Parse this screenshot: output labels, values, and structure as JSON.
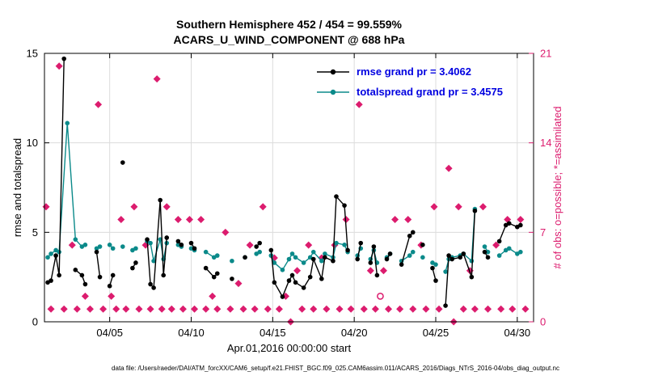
{
  "colors": {
    "rmse_line": "#000000",
    "totalspread_line": "#0b8a8a",
    "obs_markers": "#dc1c6e",
    "legend_text": "#0000e0",
    "grid": "#dcdcdc",
    "frame": "#000000",
    "background": "#ffffff"
  },
  "chart_data": {
    "type": "line",
    "title_line1": "Southern Hemisphere 452 / 454 = 99.559%",
    "title_line2": "ACARS_U_WIND_COMPONENT @ 688 hPa",
    "xlabel": "Apr.01,2016 00:00:00 start",
    "ylabel_left": "rmse and totalspread",
    "ylabel_right": "# of obs: o=possible; *=assimilated",
    "caption": "data file: /Users/raeder/DAI/ATM_forcXX/CAM6_setup/f.e21.FHIST_BGC.f09_025.CAM6assim.011/ACARS_2016/Diags_NTrS_2016-04/obs_diag_output.nc",
    "grid": true,
    "legend_position": "top-center-inside",
    "x_axis": {
      "start_label": "Apr.01,2016 00:00:00",
      "min_day": 0,
      "max_day": 30,
      "tick_days": [
        4,
        9,
        14,
        19,
        24,
        29
      ],
      "tick_labels": [
        "04/05",
        "04/10",
        "04/15",
        "04/20",
        "04/25",
        "04/30"
      ]
    },
    "y_axis_left": {
      "min": 0,
      "max": 15,
      "ticks": [
        0,
        5,
        10,
        15
      ]
    },
    "y_axis_right": {
      "min": 0,
      "max": 21,
      "ticks": [
        0,
        7,
        14,
        21
      ]
    },
    "legend": {
      "entries": [
        {
          "label": "rmse grand pr = 3.4062",
          "color": "#000000"
        },
        {
          "label": "totalspread grand pr = 3.4575",
          "color": "#0b8a8a"
        }
      ]
    },
    "series": [
      {
        "name": "rmse",
        "style": "line-dot",
        "axis": "left",
        "color": "#000000",
        "points": [
          [
            0.2,
            2.2
          ],
          [
            0.4,
            2.3
          ],
          [
            0.7,
            3.7
          ],
          [
            0.9,
            2.6
          ],
          [
            1.2,
            14.7
          ],
          [
            1.9,
            2.9
          ],
          [
            2.3,
            2.6
          ],
          [
            2.5,
            2.1
          ],
          [
            3.2,
            3.9
          ],
          [
            3.4,
            2.5
          ],
          [
            4.0,
            2.0
          ],
          [
            4.2,
            2.6
          ],
          [
            4.8,
            8.9
          ],
          [
            5.4,
            3.0
          ],
          [
            5.6,
            3.3
          ],
          [
            6.3,
            4.6
          ],
          [
            6.5,
            2.1
          ],
          [
            6.7,
            1.9
          ],
          [
            7.1,
            6.8
          ],
          [
            7.3,
            2.6
          ],
          [
            7.5,
            4.7
          ],
          [
            8.2,
            4.5
          ],
          [
            8.4,
            4.3
          ],
          [
            9.0,
            4.4
          ],
          [
            9.2,
            4.1
          ],
          [
            9.9,
            3.0
          ],
          [
            10.4,
            2.5
          ],
          [
            10.6,
            2.7
          ],
          [
            11.5,
            2.4
          ],
          [
            12.3,
            3.6
          ],
          [
            13.0,
            4.2
          ],
          [
            13.2,
            4.4
          ],
          [
            13.9,
            4.0
          ],
          [
            14.1,
            2.2
          ],
          [
            14.6,
            1.4
          ],
          [
            15.0,
            2.3
          ],
          [
            15.2,
            2.6
          ],
          [
            15.4,
            2.2
          ],
          [
            15.9,
            1.9
          ],
          [
            16.3,
            2.5
          ],
          [
            16.5,
            3.5
          ],
          [
            17.0,
            2.4
          ],
          [
            17.2,
            3.6
          ],
          [
            17.7,
            3.4
          ],
          [
            17.9,
            7.0
          ],
          [
            18.4,
            6.5
          ],
          [
            18.6,
            4.0
          ],
          [
            19.2,
            3.5
          ],
          [
            19.4,
            4.4
          ],
          [
            20.0,
            3.3
          ],
          [
            20.2,
            4.2
          ],
          [
            20.4,
            2.6
          ],
          [
            21.0,
            3.5
          ],
          [
            21.2,
            3.8
          ],
          [
            21.9,
            3.2
          ],
          [
            22.4,
            4.8
          ],
          [
            22.6,
            5.0
          ],
          [
            23.2,
            4.3
          ],
          [
            23.8,
            3.0
          ],
          [
            24.0,
            2.3
          ],
          [
            24.6,
            0.9
          ],
          [
            24.8,
            3.7
          ],
          [
            25.0,
            3.5
          ],
          [
            25.5,
            3.6
          ],
          [
            25.7,
            3.8
          ],
          [
            26.2,
            2.5
          ],
          [
            26.4,
            6.2
          ],
          [
            27.0,
            3.9
          ],
          [
            27.2,
            3.6
          ],
          [
            27.9,
            4.5
          ],
          [
            28.3,
            5.4
          ],
          [
            28.5,
            5.5
          ],
          [
            29.0,
            5.3
          ],
          [
            29.2,
            5.4
          ]
        ]
      },
      {
        "name": "totalspread",
        "style": "line-dot",
        "axis": "left",
        "color": "#0b8a8a",
        "points": [
          [
            0.2,
            3.6
          ],
          [
            0.4,
            3.8
          ],
          [
            0.7,
            4.0
          ],
          [
            0.9,
            3.9
          ],
          [
            1.4,
            11.1
          ],
          [
            1.9,
            4.6
          ],
          [
            2.3,
            4.2
          ],
          [
            2.5,
            4.3
          ],
          [
            3.2,
            4.1
          ],
          [
            3.4,
            4.2
          ],
          [
            4.0,
            4.3
          ],
          [
            4.2,
            4.1
          ],
          [
            4.8,
            4.2
          ],
          [
            5.4,
            4.0
          ],
          [
            5.6,
            4.1
          ],
          [
            6.3,
            4.5
          ],
          [
            6.5,
            4.4
          ],
          [
            6.7,
            3.4
          ],
          [
            7.1,
            4.6
          ],
          [
            7.3,
            3.5
          ],
          [
            7.5,
            4.4
          ],
          [
            8.2,
            4.3
          ],
          [
            8.4,
            4.2
          ],
          [
            9.0,
            4.1
          ],
          [
            9.2,
            4.0
          ],
          [
            9.9,
            3.9
          ],
          [
            10.4,
            3.6
          ],
          [
            10.6,
            3.7
          ],
          [
            11.5,
            3.4
          ],
          [
            12.3,
            3.6
          ],
          [
            13.0,
            3.8
          ],
          [
            13.2,
            3.9
          ],
          [
            13.9,
            3.7
          ],
          [
            14.1,
            3.3
          ],
          [
            14.6,
            2.9
          ],
          [
            15.0,
            3.5
          ],
          [
            15.2,
            3.8
          ],
          [
            15.4,
            3.6
          ],
          [
            15.9,
            3.3
          ],
          [
            16.3,
            3.6
          ],
          [
            16.5,
            3.9
          ],
          [
            17.0,
            3.4
          ],
          [
            17.2,
            3.8
          ],
          [
            17.7,
            3.6
          ],
          [
            17.9,
            4.4
          ],
          [
            18.4,
            4.3
          ],
          [
            18.6,
            3.9
          ],
          [
            19.2,
            3.7
          ],
          [
            19.4,
            4.1
          ],
          [
            20.0,
            3.5
          ],
          [
            20.2,
            4.0
          ],
          [
            20.4,
            3.3
          ],
          [
            21.0,
            3.6
          ],
          [
            21.2,
            3.8
          ],
          [
            21.9,
            3.4
          ],
          [
            22.4,
            3.7
          ],
          [
            22.6,
            3.9
          ],
          [
            23.2,
            3.6
          ],
          [
            23.8,
            3.3
          ],
          [
            24.0,
            3.2
          ],
          [
            24.6,
            2.8
          ],
          [
            24.8,
            3.5
          ],
          [
            25.0,
            3.6
          ],
          [
            25.5,
            3.7
          ],
          [
            25.7,
            3.8
          ],
          [
            26.2,
            3.4
          ],
          [
            26.4,
            6.3
          ],
          [
            27.0,
            4.2
          ],
          [
            27.2,
            3.9
          ],
          [
            27.9,
            3.7
          ],
          [
            28.3,
            4.0
          ],
          [
            28.5,
            4.1
          ],
          [
            29.0,
            3.8
          ],
          [
            29.2,
            3.9
          ]
        ]
      },
      {
        "name": "num-obs-assimilated",
        "style": "diamond",
        "axis": "right",
        "color": "#dc1c6e",
        "points": [
          [
            0.1,
            9
          ],
          [
            0.4,
            1
          ],
          [
            0.9,
            20
          ],
          [
            1.2,
            1
          ],
          [
            1.7,
            6
          ],
          [
            2.0,
            1
          ],
          [
            2.5,
            2
          ],
          [
            2.8,
            1
          ],
          [
            3.3,
            17
          ],
          [
            3.6,
            1
          ],
          [
            4.1,
            2
          ],
          [
            4.4,
            1
          ],
          [
            4.7,
            8
          ],
          [
            5.0,
            1
          ],
          [
            5.5,
            9
          ],
          [
            5.8,
            1
          ],
          [
            6.2,
            6
          ],
          [
            6.5,
            1
          ],
          [
            6.9,
            19
          ],
          [
            7.2,
            1
          ],
          [
            7.5,
            9
          ],
          [
            7.8,
            1
          ],
          [
            8.2,
            8
          ],
          [
            8.5,
            1
          ],
          [
            8.9,
            8
          ],
          [
            9.2,
            1
          ],
          [
            9.6,
            8
          ],
          [
            9.9,
            1
          ],
          [
            10.3,
            2
          ],
          [
            10.6,
            1
          ],
          [
            11.1,
            7
          ],
          [
            11.4,
            1
          ],
          [
            11.9,
            3
          ],
          [
            12.2,
            1
          ],
          [
            12.6,
            6
          ],
          [
            12.9,
            1
          ],
          [
            13.4,
            9
          ],
          [
            13.7,
            1
          ],
          [
            14.1,
            5
          ],
          [
            14.4,
            1
          ],
          [
            14.8,
            2
          ],
          [
            15.1,
            0
          ],
          [
            15.5,
            4
          ],
          [
            15.8,
            1
          ],
          [
            16.2,
            6
          ],
          [
            16.5,
            1
          ],
          [
            17.0,
            5
          ],
          [
            17.3,
            1
          ],
          [
            17.8,
            6
          ],
          [
            18.1,
            1
          ],
          [
            18.5,
            8
          ],
          [
            18.8,
            1
          ],
          [
            19.3,
            17
          ],
          [
            19.6,
            1
          ],
          [
            20.0,
            4
          ],
          [
            20.3,
            1
          ],
          [
            20.8,
            4
          ],
          [
            21.1,
            1
          ],
          [
            21.5,
            8
          ],
          [
            21.8,
            1
          ],
          [
            22.3,
            8
          ],
          [
            22.6,
            1
          ],
          [
            23.1,
            6
          ],
          [
            23.4,
            1
          ],
          [
            23.9,
            9
          ],
          [
            24.2,
            1
          ],
          [
            24.8,
            12
          ],
          [
            25.1,
            0
          ],
          [
            25.4,
            9
          ],
          [
            25.7,
            1
          ],
          [
            26.1,
            4
          ],
          [
            26.4,
            1
          ],
          [
            26.9,
            9
          ],
          [
            27.2,
            1
          ],
          [
            27.7,
            6
          ],
          [
            28.0,
            1
          ],
          [
            28.4,
            8
          ],
          [
            28.7,
            1
          ],
          [
            29.2,
            8
          ],
          [
            29.5,
            1
          ]
        ]
      },
      {
        "name": "num-obs-possible",
        "style": "open-circle",
        "axis": "right",
        "color": "#dc1c6e",
        "points": [
          [
            20.6,
            2
          ]
        ]
      }
    ]
  }
}
